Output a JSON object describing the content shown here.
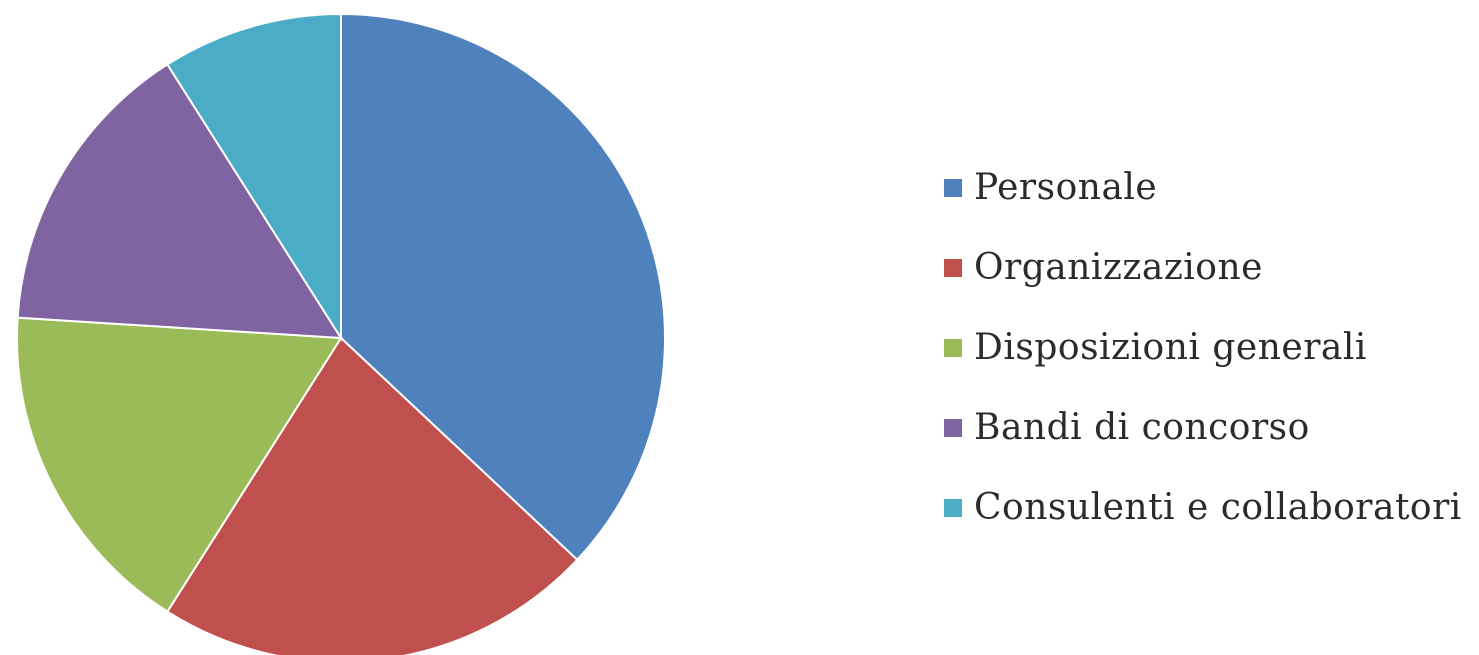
{
  "chart_data": {
    "type": "pie",
    "title": "",
    "legend_position": "right",
    "categories": [
      "Personale",
      "Organizzazione",
      "Disposizioni generali",
      "Bandi di concorso",
      "Consulenti e collaboratori"
    ],
    "values": [
      37,
      22,
      17,
      15,
      9
    ],
    "colors": [
      "#4f81bd",
      "#c0504d",
      "#9bbb59",
      "#8064a2",
      "#4bacc6"
    ]
  }
}
